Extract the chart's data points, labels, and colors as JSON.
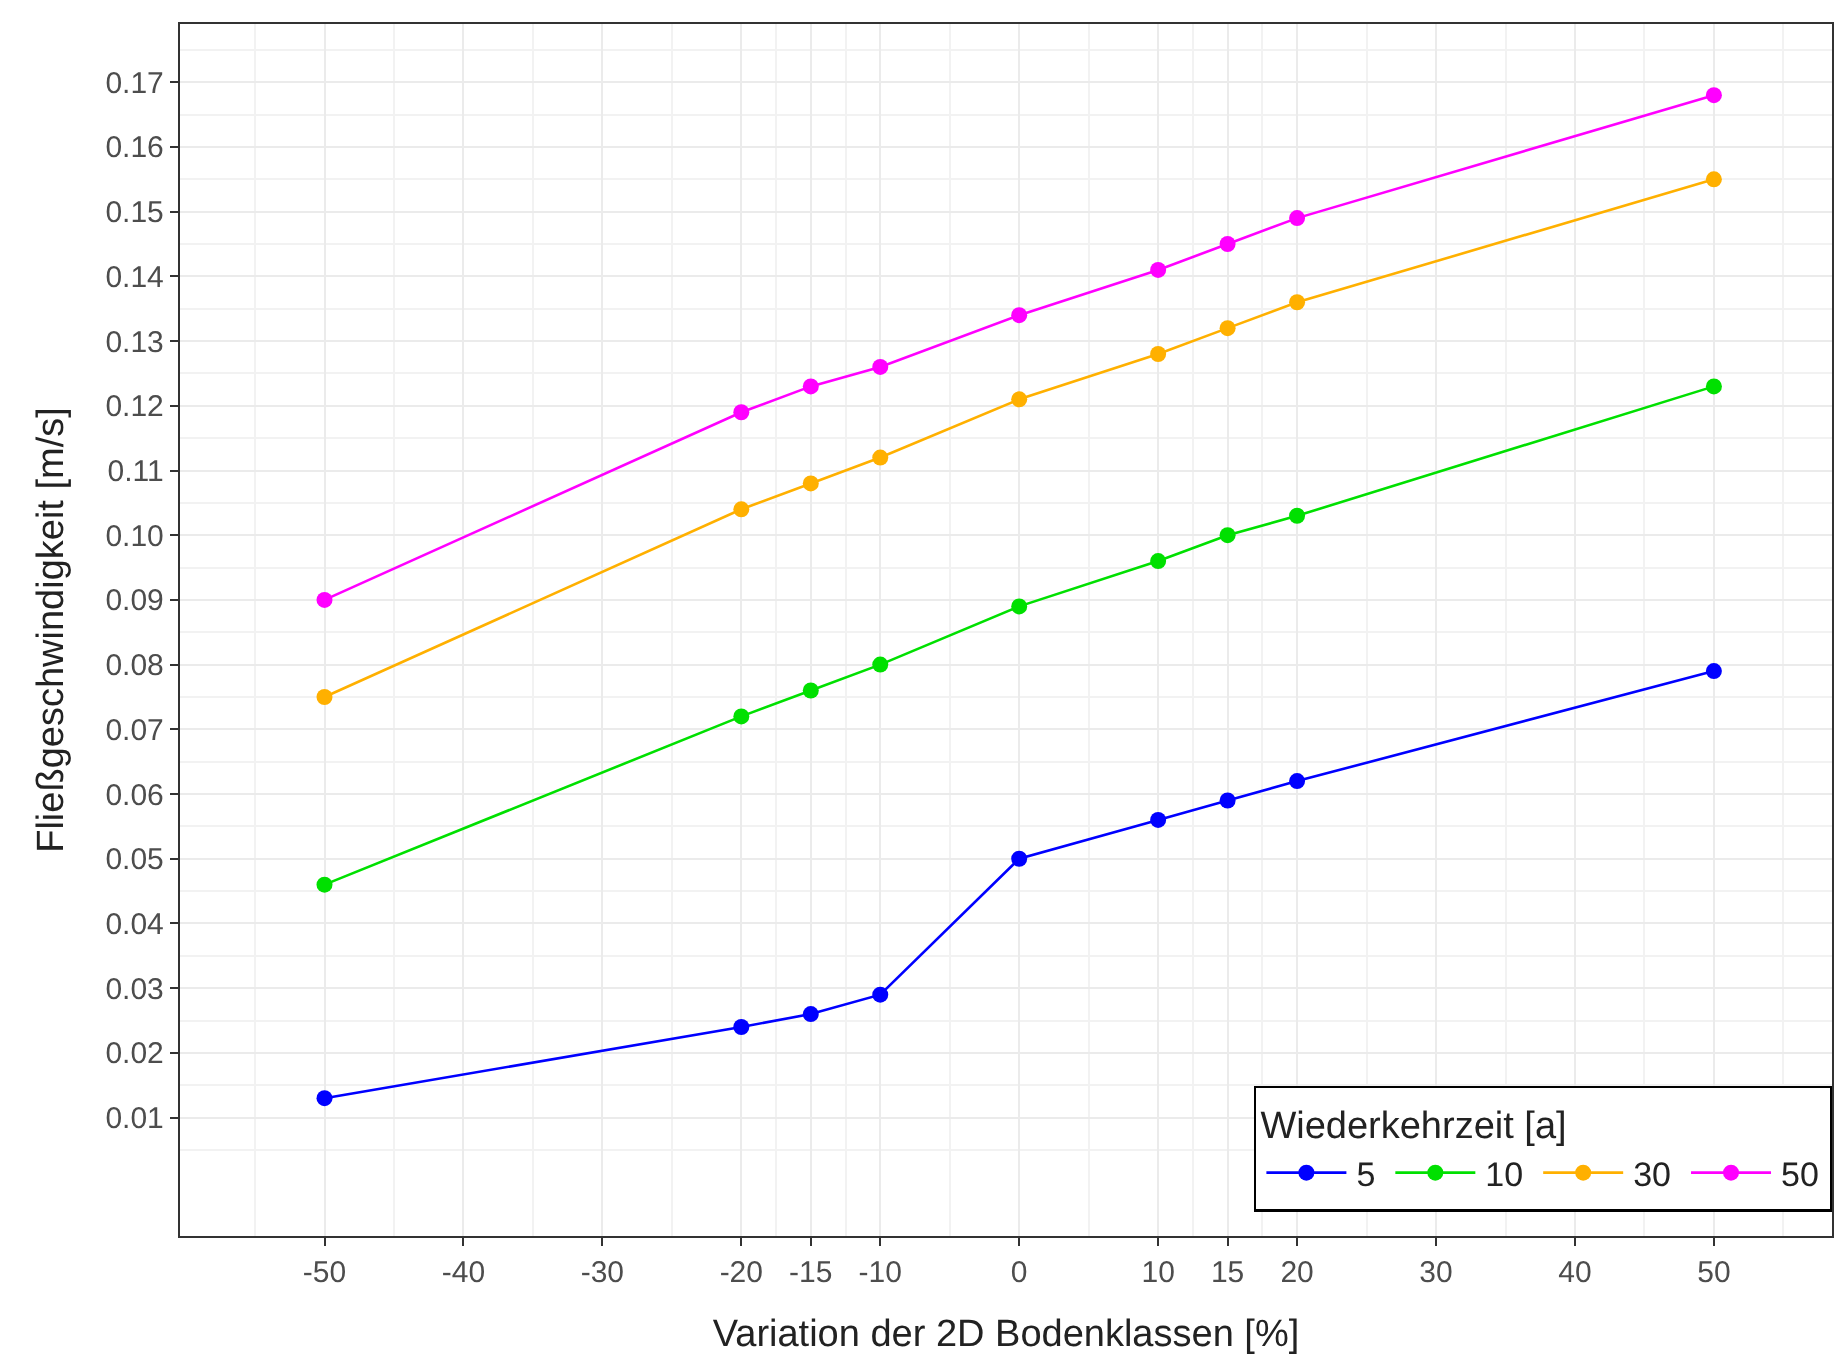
{
  "chart_data": {
    "type": "line",
    "xlabel": "Variation der 2D Bodenklassen [%]",
    "ylabel": "Fließgeschwindigkeit [m/s]",
    "legend_title": "Wiederkehrzeit [a]",
    "x": [
      -50,
      -20,
      -15,
      -10,
      0,
      10,
      15,
      20,
      50
    ],
    "series": [
      {
        "name": "5",
        "color": "#0000ff",
        "values": [
          0.013,
          0.024,
          0.026,
          0.029,
          0.05,
          0.056,
          0.059,
          0.062,
          0.079
        ]
      },
      {
        "name": "10",
        "color": "#00e000",
        "values": [
          0.046,
          0.072,
          0.076,
          0.08,
          0.089,
          0.096,
          0.1,
          0.103,
          0.123
        ]
      },
      {
        "name": "30",
        "color": "#ffb000",
        "values": [
          0.075,
          0.104,
          0.108,
          0.112,
          0.121,
          0.128,
          0.132,
          0.136,
          0.155
        ]
      },
      {
        "name": "50",
        "color": "#ff00ff",
        "values": [
          0.09,
          0.119,
          0.123,
          0.126,
          0.134,
          0.141,
          0.145,
          0.149,
          0.168
        ]
      }
    ],
    "xlim": [
      -60.4,
      58.5
    ],
    "xticks": [
      -50,
      -40,
      -30,
      -20,
      -15,
      -10,
      0,
      10,
      15,
      20,
      30,
      40,
      50
    ],
    "ylim": [
      -0.0083,
      0.179
    ],
    "yticks": [
      {
        "value": 0.01,
        "label": "0.01"
      },
      {
        "value": 0.02,
        "label": "0.02"
      },
      {
        "value": 0.03,
        "label": "0.03"
      },
      {
        "value": 0.04,
        "label": "0.04"
      },
      {
        "value": 0.05,
        "label": "0.05"
      },
      {
        "value": 0.06,
        "label": "0.06"
      },
      {
        "value": 0.07,
        "label": "0.07"
      },
      {
        "value": 0.08,
        "label": "0.08"
      },
      {
        "value": 0.09,
        "label": "0.09"
      },
      {
        "value": 0.1,
        "label": "0.10"
      },
      {
        "value": 0.11,
        "label": "0.11"
      },
      {
        "value": 0.12,
        "label": "0.12"
      },
      {
        "value": 0.13,
        "label": "0.13"
      },
      {
        "value": 0.14,
        "label": "0.14"
      },
      {
        "value": 0.15,
        "label": "0.15"
      },
      {
        "value": 0.16,
        "label": "0.16"
      },
      {
        "value": 0.17,
        "label": "0.17"
      }
    ],
    "grid": true,
    "legend": "bottom right",
    "marker": "circle",
    "line_style": "solid"
  }
}
